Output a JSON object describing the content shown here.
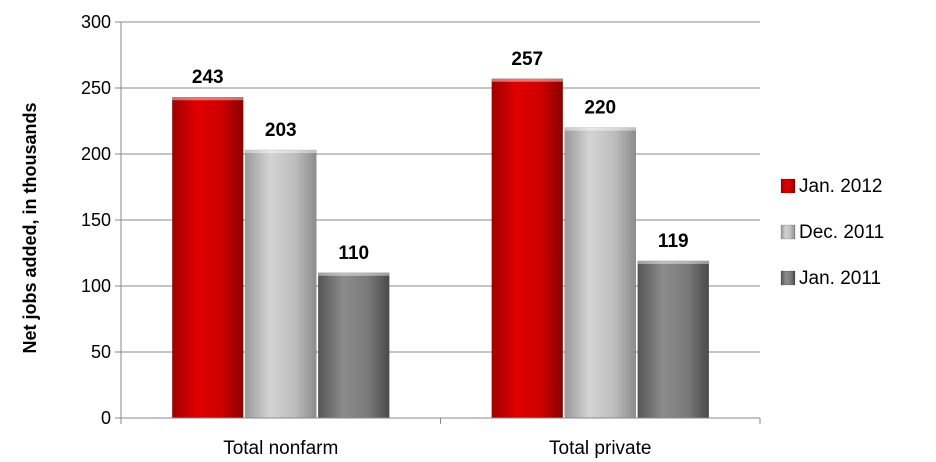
{
  "chart_data": {
    "type": "bar",
    "title": "",
    "xlabel": "",
    "ylabel": "Net jobs  added, in thousands",
    "categories": [
      "Total nonfarm",
      "Total private"
    ],
    "series": [
      {
        "name": "Jan. 2012",
        "values": [
          243,
          257
        ],
        "color": "#cc0000"
      },
      {
        "name": "Dec. 2011",
        "values": [
          203,
          220
        ],
        "color": "#bfbfbf"
      },
      {
        "name": "Jan. 2011",
        "values": [
          110,
          119
        ],
        "color": "#7f7f7f"
      }
    ],
    "ylim": [
      0,
      300
    ],
    "yticks": [
      "0",
      "50",
      "100",
      "150",
      "200",
      "250",
      "300"
    ],
    "grid": true,
    "legend": "right",
    "data_labels": true
  }
}
